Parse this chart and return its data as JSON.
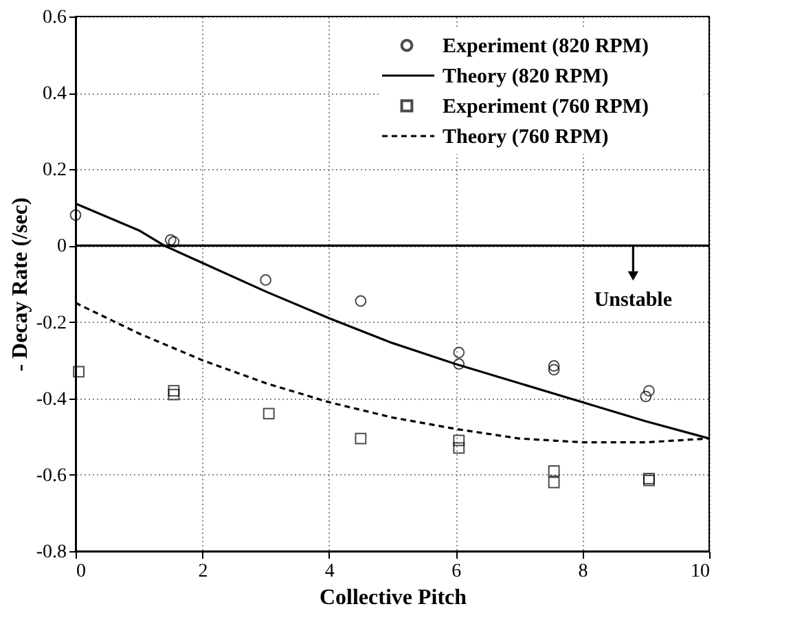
{
  "chart_data": {
    "type": "line",
    "xlabel": "Collective Pitch",
    "ylabel": "- Decay Rate (/sec)",
    "xlim": [
      0,
      10
    ],
    "xticks": [
      0,
      2,
      4,
      6,
      8,
      10
    ],
    "ylim": [
      -0.8,
      0.6
    ],
    "yticks": [
      -0.8,
      -0.6,
      -0.4,
      -0.2,
      0,
      0.2,
      0.4,
      0.6
    ],
    "grid": true,
    "legend": "top right",
    "series": [
      {
        "name": "Experiment (820 RPM)",
        "type": "scatter",
        "marker": "circle",
        "color": "#000000",
        "x": [
          0,
          1.5,
          1.55,
          3,
          4.5,
          6.05,
          6.05,
          7.55,
          7.55,
          9.05,
          9
        ],
        "values": [
          0.08,
          0.015,
          0.01,
          -0.09,
          -0.145,
          -0.28,
          -0.31,
          -0.315,
          -0.325,
          -0.38,
          -0.395
        ]
      },
      {
        "name": "Theory (820 RPM)",
        "line_style": "solid",
        "color": "#000000",
        "x": [
          0,
          1,
          1.4,
          2,
          3,
          4,
          5,
          6,
          7,
          8,
          9,
          10
        ],
        "values": [
          0.11,
          0.04,
          0,
          -0.045,
          -0.12,
          -0.19,
          -0.255,
          -0.31,
          -0.36,
          -0.41,
          -0.46,
          -0.505
        ]
      },
      {
        "name": "Experiment (760 RPM)",
        "type": "scatter",
        "marker": "square",
        "color": "#000000",
        "x": [
          0.05,
          1.55,
          1.55,
          3.05,
          4.5,
          6.05,
          6.05,
          7.55,
          7.55,
          9.05,
          9.05
        ],
        "values": [
          -0.33,
          -0.38,
          -0.39,
          -0.44,
          -0.505,
          -0.51,
          -0.53,
          -0.59,
          -0.62,
          -0.61,
          -0.615
        ]
      },
      {
        "name": "Theory (760 RPM)",
        "line_style": "dashed",
        "color": "#000000",
        "x": [
          0,
          1,
          2,
          3,
          4,
          5,
          6,
          7,
          8,
          9,
          10
        ],
        "values": [
          -0.15,
          -0.23,
          -0.3,
          -0.36,
          -0.41,
          -0.45,
          -0.48,
          -0.505,
          -0.515,
          -0.515,
          -0.505
        ]
      }
    ],
    "ref_lines": [
      {
        "axis": "y",
        "value": 0,
        "label": "Unstable",
        "color": "#000000",
        "line_style": "solid"
      }
    ]
  }
}
